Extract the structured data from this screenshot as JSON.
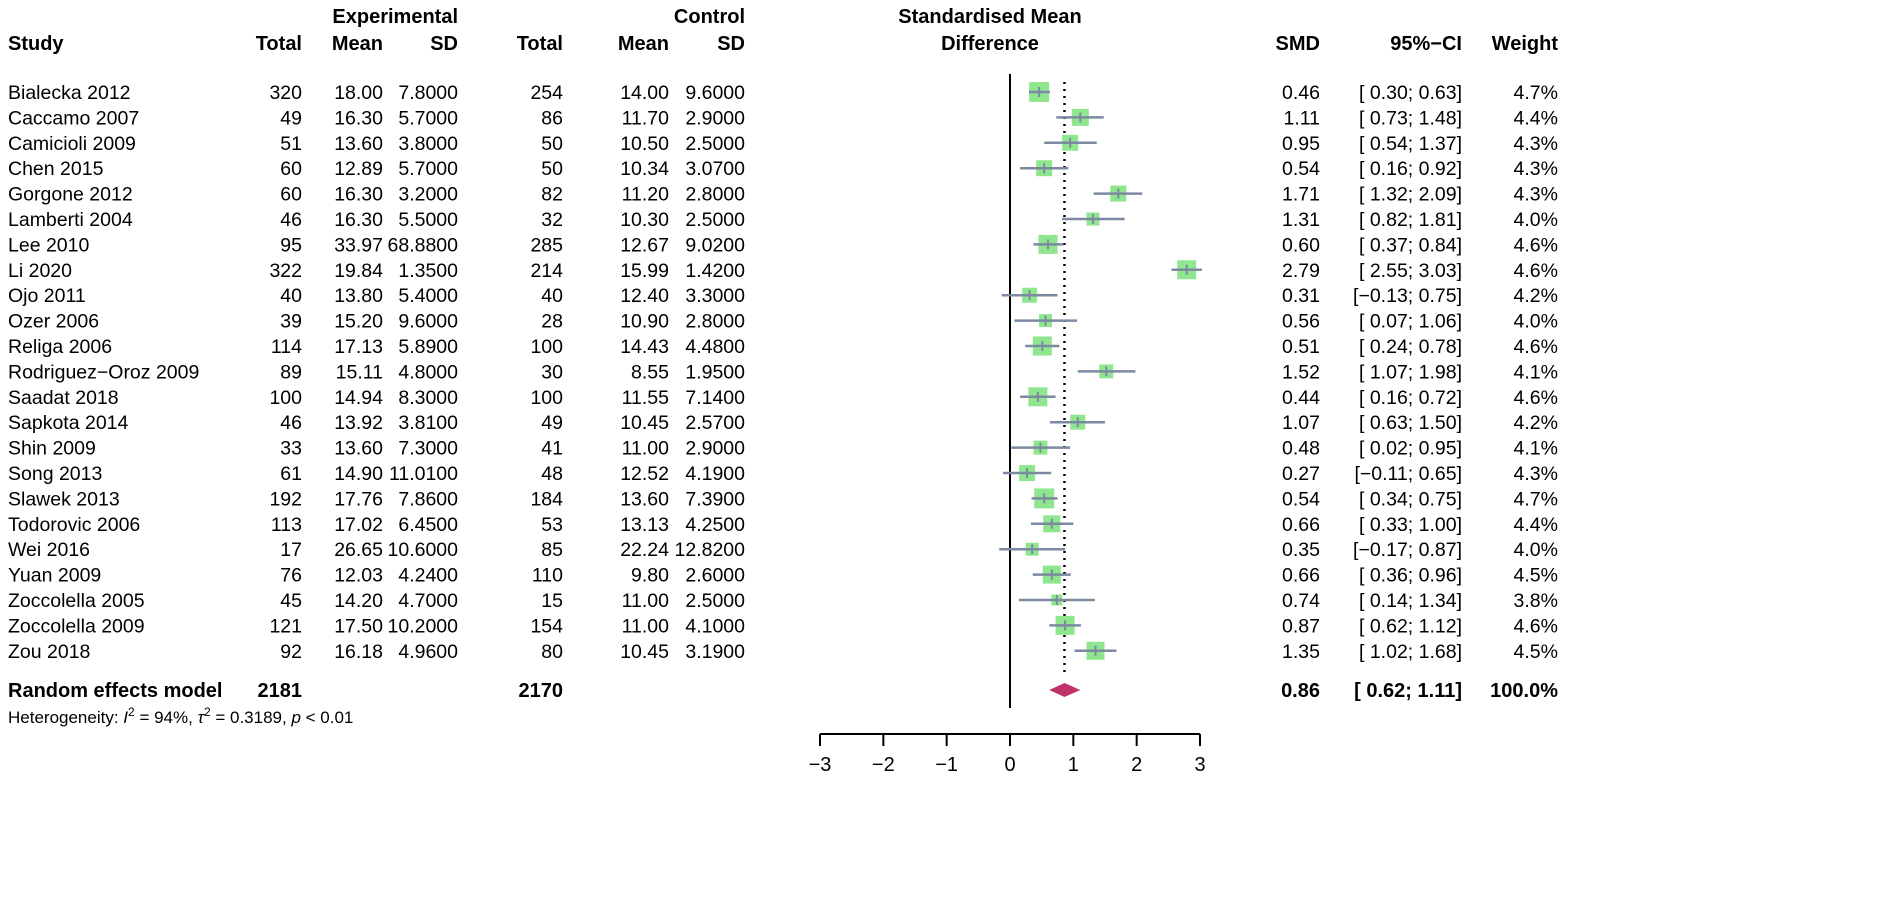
{
  "chart_data": {
    "type": "forest",
    "title": "Standardised Mean Difference",
    "header": {
      "experimental": "Experimental",
      "control": "Control",
      "study": "Study",
      "total": "Total",
      "mean": "Mean",
      "sd": "SD",
      "effect_line1": "Standardised Mean",
      "effect_line2": "Difference",
      "smd": "SMD",
      "ci": "95%−CI",
      "weight": "Weight"
    },
    "studies": [
      {
        "name": "Bialecka 2012",
        "e_total": "320",
        "e_mean": "18.00",
        "e_sd": "7.8000",
        "c_total": "254",
        "c_mean": "14.00",
        "c_sd": "9.6000",
        "smd": 0.46,
        "lo": 0.3,
        "hi": 0.63,
        "smd_text": "0.46",
        "ci_text": "[ 0.30; 0.63]",
        "weight": 4.7,
        "weight_text": "4.7%"
      },
      {
        "name": "Caccamo 2007",
        "e_total": "49",
        "e_mean": "16.30",
        "e_sd": "5.7000",
        "c_total": "86",
        "c_mean": "11.70",
        "c_sd": "2.9000",
        "smd": 1.11,
        "lo": 0.73,
        "hi": 1.48,
        "smd_text": "1.11",
        "ci_text": "[ 0.73; 1.48]",
        "weight": 4.4,
        "weight_text": "4.4%"
      },
      {
        "name": "Camicioli 2009",
        "e_total": "51",
        "e_mean": "13.60",
        "e_sd": "3.8000",
        "c_total": "50",
        "c_mean": "10.50",
        "c_sd": "2.5000",
        "smd": 0.95,
        "lo": 0.54,
        "hi": 1.37,
        "smd_text": "0.95",
        "ci_text": "[ 0.54; 1.37]",
        "weight": 4.3,
        "weight_text": "4.3%"
      },
      {
        "name": "Chen 2015",
        "e_total": "60",
        "e_mean": "12.89",
        "e_sd": "5.7000",
        "c_total": "50",
        "c_mean": "10.34",
        "c_sd": "3.0700",
        "smd": 0.54,
        "lo": 0.16,
        "hi": 0.92,
        "smd_text": "0.54",
        "ci_text": "[ 0.16; 0.92]",
        "weight": 4.3,
        "weight_text": "4.3%"
      },
      {
        "name": "Gorgone 2012",
        "e_total": "60",
        "e_mean": "16.30",
        "e_sd": "3.2000",
        "c_total": "82",
        "c_mean": "11.20",
        "c_sd": "2.8000",
        "smd": 1.71,
        "lo": 1.32,
        "hi": 2.09,
        "smd_text": "1.71",
        "ci_text": "[ 1.32; 2.09]",
        "weight": 4.3,
        "weight_text": "4.3%"
      },
      {
        "name": "Lamberti 2004",
        "e_total": "46",
        "e_mean": "16.30",
        "e_sd": "5.5000",
        "c_total": "32",
        "c_mean": "10.30",
        "c_sd": "2.5000",
        "smd": 1.31,
        "lo": 0.82,
        "hi": 1.81,
        "smd_text": "1.31",
        "ci_text": "[ 0.82; 1.81]",
        "weight": 4.0,
        "weight_text": "4.0%"
      },
      {
        "name": "Lee 2010",
        "e_total": "95",
        "e_mean": "33.97",
        "e_sd": "68.8800",
        "c_total": "285",
        "c_mean": "12.67",
        "c_sd": "9.0200",
        "smd": 0.6,
        "lo": 0.37,
        "hi": 0.84,
        "smd_text": "0.60",
        "ci_text": "[ 0.37; 0.84]",
        "weight": 4.6,
        "weight_text": "4.6%"
      },
      {
        "name": "Li 2020",
        "e_total": "322",
        "e_mean": "19.84",
        "e_sd": "1.3500",
        "c_total": "214",
        "c_mean": "15.99",
        "c_sd": "1.4200",
        "smd": 2.79,
        "lo": 2.55,
        "hi": 3.03,
        "smd_text": "2.79",
        "ci_text": "[ 2.55; 3.03]",
        "weight": 4.6,
        "weight_text": "4.6%"
      },
      {
        "name": "Ojo 2011",
        "e_total": "40",
        "e_mean": "13.80",
        "e_sd": "5.4000",
        "c_total": "40",
        "c_mean": "12.40",
        "c_sd": "3.3000",
        "smd": 0.31,
        "lo": -0.13,
        "hi": 0.75,
        "smd_text": "0.31",
        "ci_text": "[−0.13; 0.75]",
        "weight": 4.2,
        "weight_text": "4.2%"
      },
      {
        "name": "Ozer 2006",
        "e_total": "39",
        "e_mean": "15.20",
        "e_sd": "9.6000",
        "c_total": "28",
        "c_mean": "10.90",
        "c_sd": "2.8000",
        "smd": 0.56,
        "lo": 0.07,
        "hi": 1.06,
        "smd_text": "0.56",
        "ci_text": "[ 0.07; 1.06]",
        "weight": 4.0,
        "weight_text": "4.0%"
      },
      {
        "name": "Religa 2006",
        "e_total": "114",
        "e_mean": "17.13",
        "e_sd": "5.8900",
        "c_total": "100",
        "c_mean": "14.43",
        "c_sd": "4.4800",
        "smd": 0.51,
        "lo": 0.24,
        "hi": 0.78,
        "smd_text": "0.51",
        "ci_text": "[ 0.24; 0.78]",
        "weight": 4.6,
        "weight_text": "4.6%"
      },
      {
        "name": "Rodriguez−Oroz 2009",
        "e_total": "89",
        "e_mean": "15.11",
        "e_sd": "4.8000",
        "c_total": "30",
        "c_mean": "8.55",
        "c_sd": "1.9500",
        "smd": 1.52,
        "lo": 1.07,
        "hi": 1.98,
        "smd_text": "1.52",
        "ci_text": "[ 1.07; 1.98]",
        "weight": 4.1,
        "weight_text": "4.1%"
      },
      {
        "name": "Saadat 2018",
        "e_total": "100",
        "e_mean": "14.94",
        "e_sd": "8.3000",
        "c_total": "100",
        "c_mean": "11.55",
        "c_sd": "7.1400",
        "smd": 0.44,
        "lo": 0.16,
        "hi": 0.72,
        "smd_text": "0.44",
        "ci_text": "[ 0.16; 0.72]",
        "weight": 4.6,
        "weight_text": "4.6%"
      },
      {
        "name": "Sapkota 2014",
        "e_total": "46",
        "e_mean": "13.92",
        "e_sd": "3.8100",
        "c_total": "49",
        "c_mean": "10.45",
        "c_sd": "2.5700",
        "smd": 1.07,
        "lo": 0.63,
        "hi": 1.5,
        "smd_text": "1.07",
        "ci_text": "[ 0.63; 1.50]",
        "weight": 4.2,
        "weight_text": "4.2%"
      },
      {
        "name": "Shin 2009",
        "e_total": "33",
        "e_mean": "13.60",
        "e_sd": "7.3000",
        "c_total": "41",
        "c_mean": "11.00",
        "c_sd": "2.9000",
        "smd": 0.48,
        "lo": 0.02,
        "hi": 0.95,
        "smd_text": "0.48",
        "ci_text": "[ 0.02; 0.95]",
        "weight": 4.1,
        "weight_text": "4.1%"
      },
      {
        "name": "Song 2013",
        "e_total": "61",
        "e_mean": "14.90",
        "e_sd": "11.0100",
        "c_total": "48",
        "c_mean": "12.52",
        "c_sd": "4.1900",
        "smd": 0.27,
        "lo": -0.11,
        "hi": 0.65,
        "smd_text": "0.27",
        "ci_text": "[−0.11; 0.65]",
        "weight": 4.3,
        "weight_text": "4.3%"
      },
      {
        "name": "Slawek 2013",
        "e_total": "192",
        "e_mean": "17.76",
        "e_sd": "7.8600",
        "c_total": "184",
        "c_mean": "13.60",
        "c_sd": "7.3900",
        "smd": 0.54,
        "lo": 0.34,
        "hi": 0.75,
        "smd_text": "0.54",
        "ci_text": "[ 0.34; 0.75]",
        "weight": 4.7,
        "weight_text": "4.7%"
      },
      {
        "name": "Todorovic 2006",
        "e_total": "113",
        "e_mean": "17.02",
        "e_sd": "6.4500",
        "c_total": "53",
        "c_mean": "13.13",
        "c_sd": "4.2500",
        "smd": 0.66,
        "lo": 0.33,
        "hi": 1.0,
        "smd_text": "0.66",
        "ci_text": "[ 0.33; 1.00]",
        "weight": 4.4,
        "weight_text": "4.4%"
      },
      {
        "name": "Wei 2016",
        "e_total": "17",
        "e_mean": "26.65",
        "e_sd": "10.6000",
        "c_total": "85",
        "c_mean": "22.24",
        "c_sd": "12.8200",
        "smd": 0.35,
        "lo": -0.17,
        "hi": 0.87,
        "smd_text": "0.35",
        "ci_text": "[−0.17; 0.87]",
        "weight": 4.0,
        "weight_text": "4.0%"
      },
      {
        "name": "Yuan 2009",
        "e_total": "76",
        "e_mean": "12.03",
        "e_sd": "4.2400",
        "c_total": "110",
        "c_mean": "9.80",
        "c_sd": "2.6000",
        "smd": 0.66,
        "lo": 0.36,
        "hi": 0.96,
        "smd_text": "0.66",
        "ci_text": "[ 0.36; 0.96]",
        "weight": 4.5,
        "weight_text": "4.5%"
      },
      {
        "name": "Zoccolella 2005",
        "e_total": "45",
        "e_mean": "14.20",
        "e_sd": "4.7000",
        "c_total": "15",
        "c_mean": "11.00",
        "c_sd": "2.5000",
        "smd": 0.74,
        "lo": 0.14,
        "hi": 1.34,
        "smd_text": "0.74",
        "ci_text": "[ 0.14; 1.34]",
        "weight": 3.8,
        "weight_text": "3.8%"
      },
      {
        "name": "Zoccolella 2009",
        "e_total": "121",
        "e_mean": "17.50",
        "e_sd": "10.2000",
        "c_total": "154",
        "c_mean": "11.00",
        "c_sd": "4.1000",
        "smd": 0.87,
        "lo": 0.62,
        "hi": 1.12,
        "smd_text": "0.87",
        "ci_text": "[ 0.62; 1.12]",
        "weight": 4.6,
        "weight_text": "4.6%"
      },
      {
        "name": "Zou 2018",
        "e_total": "92",
        "e_mean": "16.18",
        "e_sd": "4.9600",
        "c_total": "80",
        "c_mean": "10.45",
        "c_sd": "3.1900",
        "smd": 1.35,
        "lo": 1.02,
        "hi": 1.68,
        "smd_text": "1.35",
        "ci_text": "[ 1.02; 1.68]",
        "weight": 4.5,
        "weight_text": "4.5%"
      }
    ],
    "pooled": {
      "label": "Random effects model",
      "e_total": "2181",
      "c_total": "2170",
      "smd": 0.86,
      "lo": 0.62,
      "hi": 1.11,
      "smd_text": "0.86",
      "ci_text": "[ 0.62; 1.11]",
      "weight_text": "100.0%"
    },
    "heterogeneity": {
      "prefix": "Heterogeneity: ",
      "i2_symbol": "I",
      "i2_sup": "2",
      "i2_value": " = 94%, ",
      "tau_symbol": "τ",
      "tau_sup": "2",
      "tau_value": " = 0.3189, ",
      "p_symbol": "p",
      "p_value": " < 0.01"
    },
    "x_axis": {
      "range": [
        -3,
        3
      ],
      "ticks": [
        -3,
        -2,
        -1,
        0,
        1,
        2,
        3
      ],
      "tick_labels": [
        "−3",
        "−2",
        "−1",
        "0",
        "1",
        "2",
        "3"
      ]
    },
    "colors": {
      "box_fill": "#8fe68f",
      "ci_line": "#7b8aa0",
      "diamond": "#c0326a",
      "axis": "#000000"
    }
  }
}
